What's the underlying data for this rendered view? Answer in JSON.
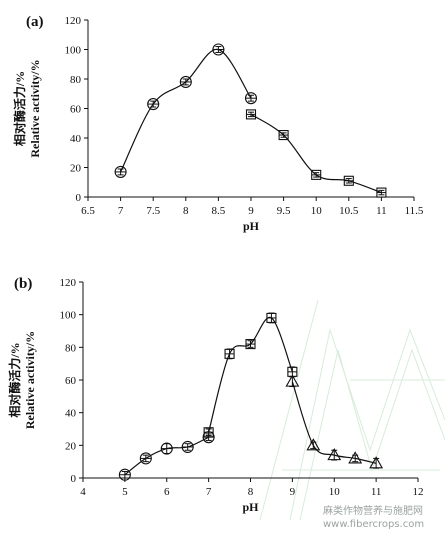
{
  "watermark": {
    "line1": "麻类作物营养与施肥网",
    "line2": "www.fibercrops.com"
  },
  "chart_data": [
    {
      "type": "line",
      "panel_label": "(a)",
      "title": "",
      "xlabel": "pH",
      "ylabel_cn": "相对酶活力/%",
      "ylabel_en": "Relative activity/%",
      "xlim": [
        6.5,
        11.5
      ],
      "ylim": [
        0,
        120
      ],
      "xticks": [
        "6.5",
        "7",
        "7.5",
        "8",
        "8.5",
        "9",
        "9.5",
        "10",
        "10.5",
        "11",
        "11.5"
      ],
      "yticks": [
        "0",
        "20",
        "40",
        "60",
        "80",
        "100",
        "120"
      ],
      "grid": false,
      "legend": "none",
      "series": [
        {
          "marker": "circle",
          "x": [
            7,
            7.5,
            8,
            8.5,
            9
          ],
          "y": [
            17,
            63,
            78,
            100,
            67
          ],
          "err": [
            2,
            2,
            2,
            2,
            2
          ]
        },
        {
          "marker": "square",
          "x": [
            9,
            9.5,
            10,
            10.5,
            11
          ],
          "y": [
            56,
            42,
            15,
            11,
            3
          ],
          "err": [
            1.5,
            1.5,
            1.5,
            1.5,
            1.5
          ]
        }
      ]
    },
    {
      "type": "line",
      "panel_label": "(b)",
      "title": "",
      "xlabel": "pH",
      "ylabel_cn": "相对酶活力/%",
      "ylabel_en": "Relative activity/%",
      "xlim": [
        4,
        12
      ],
      "ylim": [
        0,
        120
      ],
      "xticks": [
        "4",
        "5",
        "6",
        "7",
        "8",
        "9",
        "10",
        "11",
        "12"
      ],
      "yticks": [
        "0",
        "20",
        "40",
        "60",
        "80",
        "100",
        "120"
      ],
      "grid": false,
      "legend": "none",
      "series": [
        {
          "marker": "circle",
          "x": [
            5,
            5.5,
            6,
            6.5,
            7
          ],
          "y": [
            2,
            12,
            18,
            19,
            25
          ],
          "err": [
            2,
            2,
            3,
            2,
            2
          ]
        },
        {
          "marker": "square",
          "x": [
            7,
            7.5,
            8,
            8.5,
            9
          ],
          "y": [
            28,
            76,
            82,
            98,
            65
          ],
          "err": [
            2,
            3,
            2,
            3,
            3
          ]
        },
        {
          "marker": "triangle",
          "x": [
            9,
            9.5,
            10,
            10.5,
            11
          ],
          "y": [
            59,
            20,
            14,
            12,
            9
          ],
          "err": [
            3,
            2,
            3,
            2,
            3
          ]
        }
      ]
    }
  ]
}
